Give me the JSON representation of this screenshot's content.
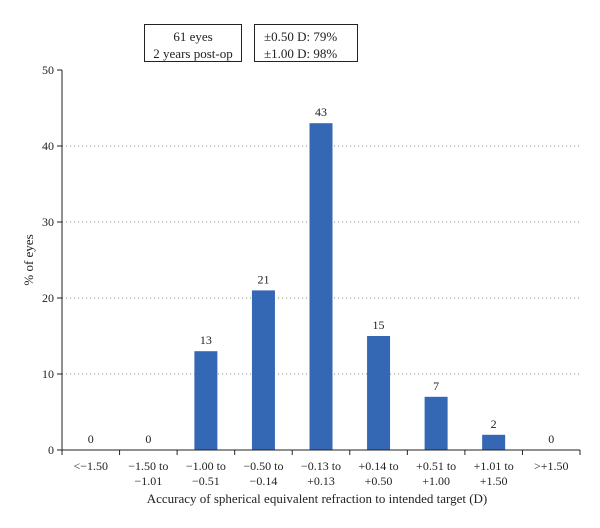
{
  "info_boxes": {
    "left": [
      "61  eyes",
      "2 years post-op"
    ],
    "right": [
      "±0.50 D: 79%",
      "±1.00 D: 98%"
    ]
  },
  "chart_data": {
    "type": "bar",
    "title": "",
    "xlabel": "Accuracy of spherical equivalent refraction to intended target (D)",
    "ylabel": "% of eyes",
    "ylim": [
      0,
      50
    ],
    "yticks": [
      0,
      10,
      20,
      30,
      40,
      50
    ],
    "grid": "horizontal dotted",
    "bar_color": "#3468b4",
    "categories": [
      [
        "<−1.50"
      ],
      [
        "−1.50 to",
        "−1.01"
      ],
      [
        "−1.00 to",
        "−0.51"
      ],
      [
        "−0.50 to",
        "−0.14"
      ],
      [
        "−0.13 to",
        "+0.13"
      ],
      [
        "+0.14 to",
        "+0.50"
      ],
      [
        "+0.51 to",
        "+1.00"
      ],
      [
        "+1.01 to",
        "+1.50"
      ],
      [
        ">+1.50"
      ]
    ],
    "values": [
      0,
      0,
      13,
      21,
      43,
      15,
      7,
      2,
      0
    ],
    "data_labels": [
      "0",
      "0",
      "13",
      "21",
      "43",
      "15",
      "7",
      "2",
      "0"
    ]
  }
}
